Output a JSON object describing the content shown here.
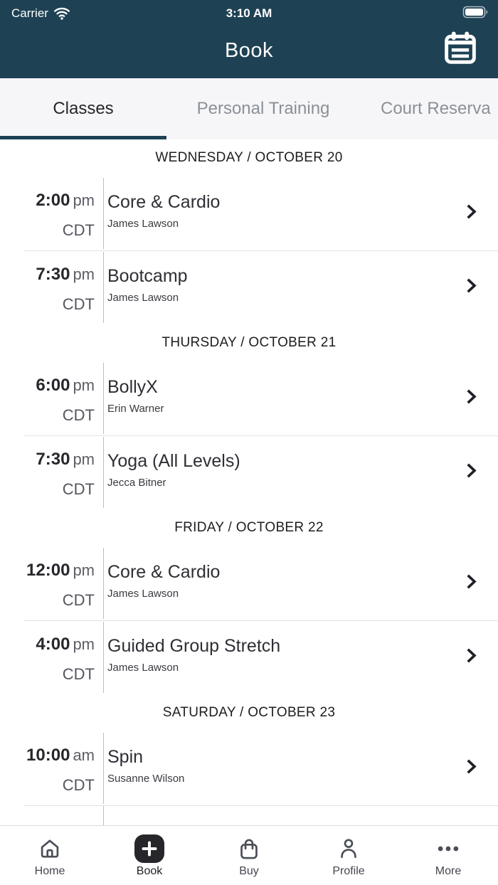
{
  "status_bar": {
    "carrier": "Carrier",
    "time": "3:10 AM"
  },
  "header": {
    "title": "Book"
  },
  "tabs": [
    {
      "label": "Classes",
      "active": true
    },
    {
      "label": "Personal Training",
      "active": false
    },
    {
      "label": "Court Reserva",
      "active": false
    }
  ],
  "schedule": {
    "sections": [
      {
        "day": "WEDNESDAY / OCTOBER 20",
        "classes": [
          {
            "time": "2:00",
            "meridiem": "pm",
            "tz": "CDT",
            "name": "Core & Cardio",
            "instructor": "James Lawson"
          },
          {
            "time": "7:30",
            "meridiem": "pm",
            "tz": "CDT",
            "name": "Bootcamp",
            "instructor": "James Lawson"
          }
        ]
      },
      {
        "day": "THURSDAY / OCTOBER 21",
        "classes": [
          {
            "time": "6:00",
            "meridiem": "pm",
            "tz": "CDT",
            "name": "BollyX",
            "instructor": "Erin Warner"
          },
          {
            "time": "7:30",
            "meridiem": "pm",
            "tz": "CDT",
            "name": "Yoga (All Levels)",
            "instructor": "Jecca Bitner"
          }
        ]
      },
      {
        "day": "FRIDAY / OCTOBER 22",
        "classes": [
          {
            "time": "12:00",
            "meridiem": "pm",
            "tz": "CDT",
            "name": "Core & Cardio",
            "instructor": "James Lawson"
          },
          {
            "time": "4:00",
            "meridiem": "pm",
            "tz": "CDT",
            "name": "Guided Group Stretch",
            "instructor": "James Lawson"
          }
        ]
      },
      {
        "day": "SATURDAY / OCTOBER 23",
        "classes": [
          {
            "time": "10:00",
            "meridiem": "am",
            "tz": "CDT",
            "name": "Spin",
            "instructor": "Susanne Wilson"
          }
        ]
      }
    ]
  },
  "bottom_nav": {
    "items": [
      {
        "label": "Home",
        "icon": "home-icon",
        "active": false
      },
      {
        "label": "Book",
        "icon": "plus-icon",
        "active": true
      },
      {
        "label": "Buy",
        "icon": "bag-icon",
        "active": false
      },
      {
        "label": "Profile",
        "icon": "profile-icon",
        "active": false
      },
      {
        "label": "More",
        "icon": "more-icon",
        "active": false
      }
    ]
  },
  "colors": {
    "header_teal": "#1e4254",
    "tab_underline": "#1e4254",
    "active_nav_badge": "#26262b",
    "inactive_tab_text": "#8b9097"
  }
}
